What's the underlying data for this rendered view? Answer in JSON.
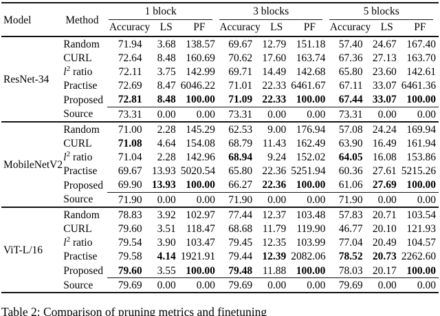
{
  "table": {
    "header": {
      "model": "Model",
      "method": "Method",
      "block_groups": [
        "1 block",
        "3 blocks",
        "5 blocks"
      ],
      "metric_cols": [
        "Accuracy",
        "LS",
        "PF"
      ]
    },
    "groups": [
      {
        "model": "ResNet-34",
        "rows": [
          {
            "method": "Random",
            "values": [
              "71.94",
              "3.68",
              "138.57",
              "69.67",
              "12.79",
              "151.18",
              "57.40",
              "24.67",
              "167.40"
            ],
            "bold": []
          },
          {
            "method": "CURL",
            "values": [
              "72.64",
              "8.48",
              "160.69",
              "70.62",
              "17.60",
              "163.74",
              "67.36",
              "27.13",
              "163.70"
            ],
            "bold": []
          },
          {
            "method": "l^2 ratio",
            "values": [
              "72.11",
              "3.75",
              "142.99",
              "69.71",
              "14.49",
              "142.68",
              "65.80",
              "23.60",
              "142.61"
            ],
            "bold": []
          },
          {
            "method": "Practise",
            "values": [
              "72.69",
              "8.47",
              "6046.22",
              "71.01",
              "22.33",
              "6461.67",
              "67.11",
              "33.07",
              "6461.36"
            ],
            "bold": []
          },
          {
            "method": "Proposed",
            "values": [
              "72.81",
              "8.48",
              "100.00",
              "71.09",
              "22.33",
              "100.00",
              "67.44",
              "33.07",
              "100.00"
            ],
            "bold": [
              0,
              1,
              2,
              3,
              4,
              5,
              6,
              7,
              8
            ]
          }
        ],
        "source_row": {
          "method": "Source",
          "values": [
            "73.31",
            "0.00",
            "0.00",
            "73.31",
            "0.00",
            "0.00",
            "73.31",
            "0.00",
            "0.00"
          ],
          "bold": []
        }
      },
      {
        "model": "MobileNetV2",
        "rows": [
          {
            "method": "Random",
            "values": [
              "71.00",
              "2.28",
              "145.29",
              "62.53",
              "9.00",
              "176.94",
              "57.08",
              "24.24",
              "169.94"
            ],
            "bold": []
          },
          {
            "method": "CURL",
            "values": [
              "71.08",
              "4.64",
              "154.08",
              "68.79",
              "11.43",
              "162.49",
              "63.90",
              "16.49",
              "161.94"
            ],
            "bold": [
              0
            ]
          },
          {
            "method": "l^2 ratio",
            "values": [
              "71.04",
              "2.28",
              "142.96",
              "68.94",
              "9.24",
              "152.02",
              "64.05",
              "16.08",
              "153.86"
            ],
            "bold": [
              3,
              6
            ]
          },
          {
            "method": "Practise",
            "values": [
              "69.67",
              "13.93",
              "5020.54",
              "65.80",
              "22.36",
              "5251.94",
              "60.36",
              "27.61",
              "5215.26"
            ],
            "bold": []
          },
          {
            "method": "Proposed",
            "values": [
              "69.90",
              "13.93",
              "100.00",
              "66.27",
              "22.36",
              "100.00",
              "61.06",
              "27.69",
              "100.00"
            ],
            "bold": [
              1,
              2,
              4,
              5,
              7,
              8
            ]
          }
        ],
        "source_row": {
          "method": "Source",
          "values": [
            "71.90",
            "0.00",
            "0.00",
            "71.90",
            "0.00",
            "0.00",
            "71.90",
            "0.00",
            "0.00"
          ],
          "bold": []
        }
      },
      {
        "model": "ViT-L/16",
        "rows": [
          {
            "method": "Random",
            "values": [
              "78.83",
              "3.92",
              "102.97",
              "77.44",
              "12.37",
              "103.48",
              "57.83",
              "20.71",
              "103.54"
            ],
            "bold": []
          },
          {
            "method": "CURL",
            "values": [
              "79.60",
              "3.51",
              "118.47",
              "68.68",
              "11.79",
              "119.90",
              "46.77",
              "20.10",
              "121.93"
            ],
            "bold": []
          },
          {
            "method": "l^2 ratio",
            "values": [
              "79.54",
              "3.90",
              "103.47",
              "79.45",
              "12.35",
              "103.99",
              "77.04",
              "20.49",
              "104.57"
            ],
            "bold": []
          },
          {
            "method": "Practise",
            "values": [
              "79.58",
              "4.14",
              "1921.91",
              "79.44",
              "12.39",
              "2082.06",
              "78.52",
              "20.73",
              "2262.60"
            ],
            "bold": [
              1,
              4,
              6,
              7
            ]
          },
          {
            "method": "Proposed",
            "values": [
              "79.60",
              "3.55",
              "100.00",
              "79.48",
              "11.88",
              "100.00",
              "78.03",
              "20.17",
              "100.00"
            ],
            "bold": [
              0,
              2,
              3,
              5,
              8
            ]
          }
        ],
        "source_row": {
          "method": "Source",
          "values": [
            "79.69",
            "0.00",
            "0.00",
            "79.69",
            "0.00",
            "0.00",
            "79.69",
            "0.00",
            "0.00"
          ],
          "bold": []
        }
      }
    ]
  },
  "caption": {
    "label": "Table 2:",
    "text": "Comparison of pruning metrics and finetuning"
  }
}
